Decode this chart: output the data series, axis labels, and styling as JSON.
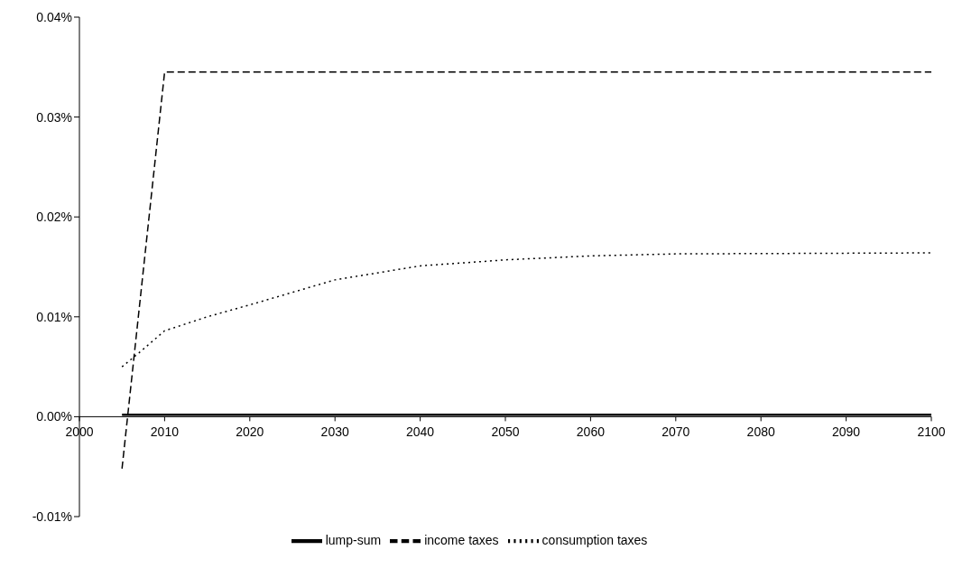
{
  "chart_data": {
    "type": "line",
    "xlim": [
      2000,
      2100
    ],
    "xticks": [
      2000,
      2010,
      2020,
      2030,
      2040,
      2050,
      2060,
      2070,
      2080,
      2090,
      2100
    ],
    "ylim": [
      -0.01,
      0.04
    ],
    "yticks": [
      {
        "value": -0.01,
        "label": "-0.01%"
      },
      {
        "value": 0,
        "label": "0.00%"
      },
      {
        "value": 0.01,
        "label": "0.01%"
      },
      {
        "value": 0.02,
        "label": "0.02%"
      },
      {
        "value": 0.03,
        "label": "0.03%"
      },
      {
        "value": 0.04,
        "label": "0.04%"
      }
    ],
    "grid": false,
    "legend": "bottom",
    "marker": "none",
    "series": [
      {
        "name": "lump-sum",
        "color": "#000000",
        "line_style": "solid",
        "x": [
          2005,
          2100
        ],
        "values": [
          0.0002,
          0.0002
        ]
      },
      {
        "name": "income taxes",
        "color": "#000000",
        "line_style": "dashed",
        "x": [
          2005,
          2010,
          2100
        ],
        "values": [
          -0.0052,
          0.0345,
          0.0345
        ]
      },
      {
        "name": "consumption taxes",
        "color": "#000000",
        "line_style": "dotted",
        "x": [
          2005,
          2007,
          2010,
          2015,
          2020,
          2030,
          2040,
          2050,
          2060,
          2070,
          2100
        ],
        "values": [
          0.005,
          0.0064,
          0.0086,
          0.01,
          0.0112,
          0.0137,
          0.0151,
          0.0157,
          0.0161,
          0.0163,
          0.0164
        ]
      }
    ]
  }
}
